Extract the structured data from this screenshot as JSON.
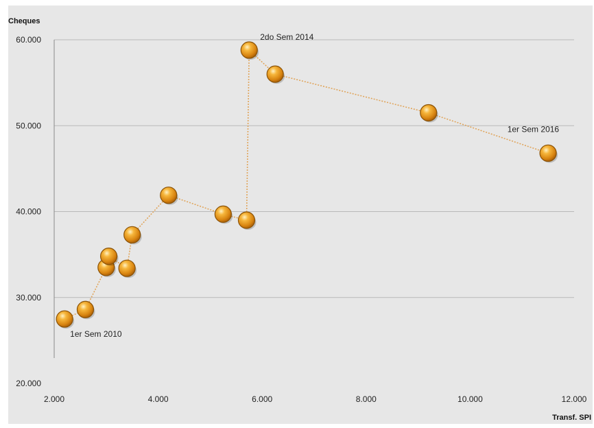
{
  "chart_data": {
    "type": "scatter",
    "xlabel": "Transf. SPI",
    "ylabel": "Cheques",
    "xlim": [
      2000,
      12000
    ],
    "ylim": [
      20000,
      60000
    ],
    "x_ticks": [
      2000,
      4000,
      6000,
      8000,
      10000,
      12000
    ],
    "x_tick_labels": [
      "2.000",
      "4.000",
      "6.000",
      "8.000",
      "10.000",
      "12.000"
    ],
    "y_ticks": [
      20000,
      30000,
      40000,
      50000,
      60000
    ],
    "y_tick_labels": [
      "20.000",
      "30.000",
      "40.000",
      "50.000",
      "60.000"
    ],
    "grid": true,
    "connected": true,
    "marker_color": "#e8961a",
    "line_color": "#e0a45a",
    "series": [
      {
        "points": [
          {
            "x": 2200,
            "y": 27500
          },
          {
            "x": 2600,
            "y": 28600
          },
          {
            "x": 3000,
            "y": 33500
          },
          {
            "x": 3050,
            "y": 34800
          },
          {
            "x": 3400,
            "y": 33400
          },
          {
            "x": 3500,
            "y": 37300
          },
          {
            "x": 4200,
            "y": 41900
          },
          {
            "x": 5250,
            "y": 39700
          },
          {
            "x": 5700,
            "y": 39000
          },
          {
            "x": 5750,
            "y": 58800
          },
          {
            "x": 6250,
            "y": 56000
          },
          {
            "x": 9200,
            "y": 51500
          },
          {
            "x": 11500,
            "y": 46800
          }
        ]
      }
    ],
    "annotations": [
      {
        "text": "1er Sem 2010",
        "point_index": 0
      },
      {
        "text": "2do Sem 2014",
        "point_index": 9
      },
      {
        "text": "1er Sem 2016",
        "point_index": 12
      }
    ]
  }
}
